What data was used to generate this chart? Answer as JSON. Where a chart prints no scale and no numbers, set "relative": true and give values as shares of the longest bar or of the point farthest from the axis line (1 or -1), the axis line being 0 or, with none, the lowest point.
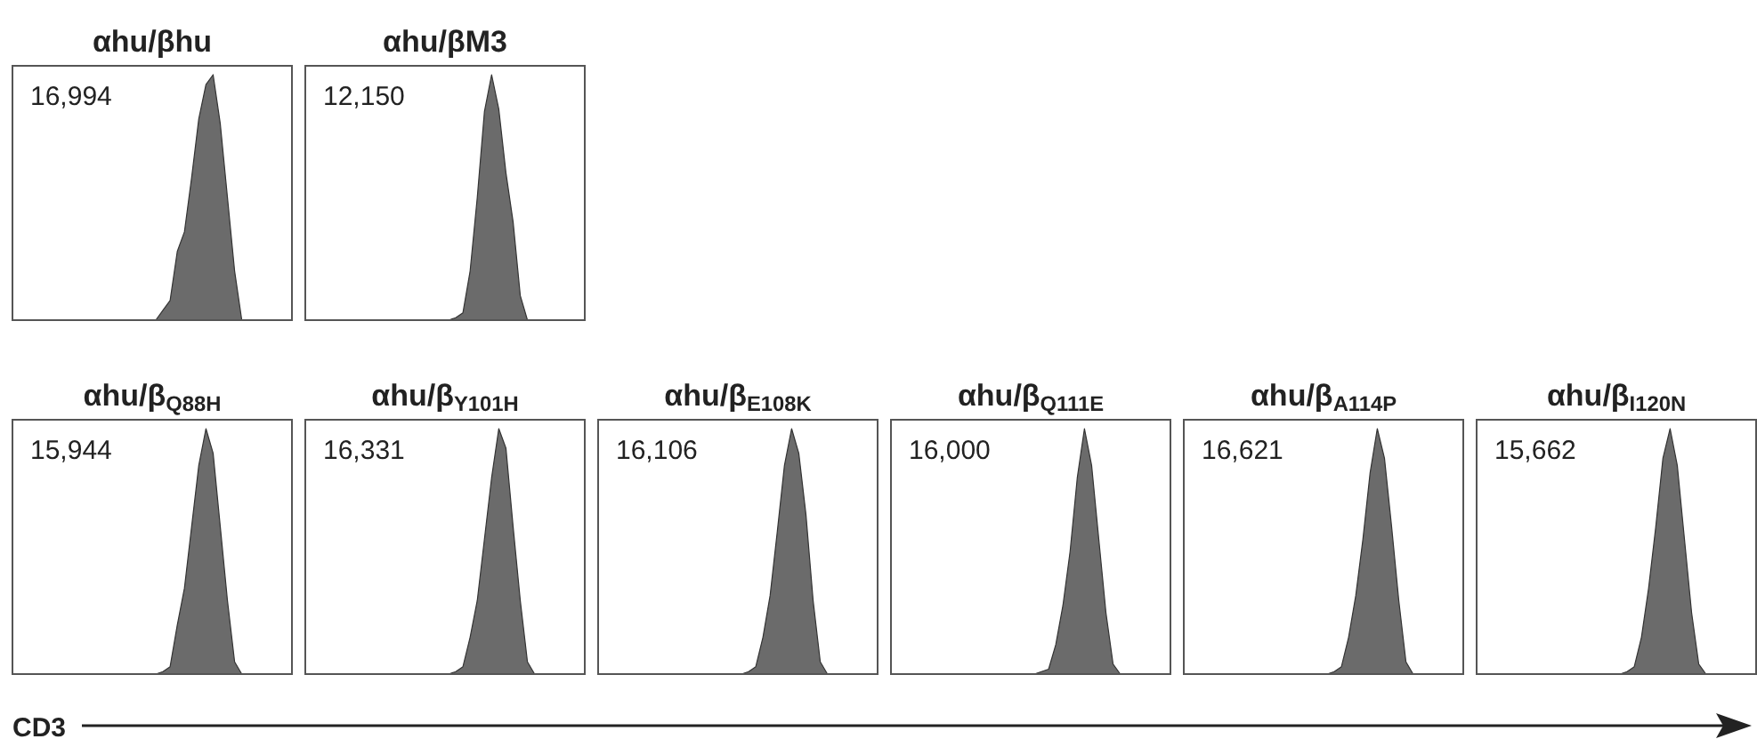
{
  "chart_data": [
    {
      "type": "area",
      "title": "αhu/βhu",
      "relative": true,
      "color": "#6b6b6b",
      "annotations": [
        "16,994"
      ],
      "categories": [
        null,
        null,
        null,
        null,
        null,
        null,
        null,
        null,
        null,
        null,
        null,
        null,
        null,
        null,
        null,
        null,
        null,
        null,
        null,
        null,
        null,
        null,
        null,
        null,
        null,
        null,
        null,
        null,
        null,
        null,
        null,
        null,
        null,
        null,
        null,
        null,
        null,
        null,
        null,
        null
      ],
      "values": [
        0,
        0,
        0,
        0,
        0,
        0,
        0,
        0,
        0,
        0,
        0,
        0,
        0,
        0,
        0,
        0,
        0,
        0,
        0,
        0,
        0,
        0.04,
        0.08,
        0.28,
        0.36,
        0.58,
        0.82,
        0.96,
        1,
        0.8,
        0.5,
        0.2,
        0,
        0,
        0,
        0,
        0,
        0,
        0,
        0
      ]
    },
    {
      "type": "area",
      "title": "αhu/βM3",
      "relative": true,
      "color": "#6b6b6b",
      "annotations": [
        "12,150"
      ],
      "categories": [
        null,
        null,
        null,
        null,
        null,
        null,
        null,
        null,
        null,
        null,
        null,
        null,
        null,
        null,
        null,
        null,
        null,
        null,
        null,
        null,
        null,
        null,
        null,
        null,
        null,
        null,
        null,
        null,
        null,
        null,
        null,
        null,
        null,
        null,
        null,
        null,
        null,
        null,
        null,
        null
      ],
      "values": [
        0,
        0,
        0,
        0,
        0,
        0,
        0,
        0,
        0,
        0,
        0,
        0,
        0,
        0,
        0,
        0,
        0,
        0,
        0,
        0,
        0,
        0.01,
        0.03,
        0.2,
        0.5,
        0.85,
        1,
        0.86,
        0.6,
        0.4,
        0.1,
        0,
        0,
        0,
        0,
        0,
        0,
        0,
        0,
        0
      ]
    },
    {
      "type": "area",
      "title": "αhu/β$_{Q88H}$",
      "relative": true,
      "color": "#6b6b6b",
      "annotations": [
        "15,944"
      ],
      "categories": [
        null,
        null,
        null,
        null,
        null,
        null,
        null,
        null,
        null,
        null,
        null,
        null,
        null,
        null,
        null,
        null,
        null,
        null,
        null,
        null,
        null,
        null,
        null,
        null,
        null,
        null,
        null,
        null,
        null,
        null,
        null,
        null,
        null,
        null,
        null,
        null,
        null,
        null,
        null,
        null
      ],
      "values": [
        0,
        0,
        0,
        0,
        0,
        0,
        0,
        0,
        0,
        0,
        0,
        0,
        0,
        0,
        0,
        0,
        0,
        0,
        0,
        0,
        0,
        0.01,
        0.03,
        0.2,
        0.35,
        0.6,
        0.85,
        1,
        0.9,
        0.6,
        0.3,
        0.05,
        0,
        0,
        0,
        0,
        0,
        0,
        0,
        0
      ],
      "xlabel": "CD3"
    },
    {
      "type": "area",
      "title": "αhu/β$_{Y101H}$",
      "relative": true,
      "color": "#6b6b6b",
      "annotations": [
        "16,331"
      ],
      "categories": [
        null,
        null,
        null,
        null,
        null,
        null,
        null,
        null,
        null,
        null,
        null,
        null,
        null,
        null,
        null,
        null,
        null,
        null,
        null,
        null,
        null,
        null,
        null,
        null,
        null,
        null,
        null,
        null,
        null,
        null,
        null,
        null,
        null,
        null,
        null,
        null,
        null,
        null,
        null,
        null
      ],
      "values": [
        0,
        0,
        0,
        0,
        0,
        0,
        0,
        0,
        0,
        0,
        0,
        0,
        0,
        0,
        0,
        0,
        0,
        0,
        0,
        0,
        0,
        0.01,
        0.03,
        0.15,
        0.3,
        0.55,
        0.8,
        1,
        0.92,
        0.6,
        0.3,
        0.05,
        0,
        0,
        0,
        0,
        0,
        0,
        0,
        0
      ]
    },
    {
      "type": "area",
      "title": "αhu/β$_{E108K}$",
      "relative": true,
      "color": "#6b6b6b",
      "annotations": [
        "16,106"
      ],
      "categories": [
        null,
        null,
        null,
        null,
        null,
        null,
        null,
        null,
        null,
        null,
        null,
        null,
        null,
        null,
        null,
        null,
        null,
        null,
        null,
        null,
        null,
        null,
        null,
        null,
        null,
        null,
        null,
        null,
        null,
        null,
        null,
        null,
        null,
        null,
        null,
        null,
        null,
        null,
        null,
        null
      ],
      "values": [
        0,
        0,
        0,
        0,
        0,
        0,
        0,
        0,
        0,
        0,
        0,
        0,
        0,
        0,
        0,
        0,
        0,
        0,
        0,
        0,
        0,
        0.01,
        0.03,
        0.15,
        0.32,
        0.58,
        0.85,
        1,
        0.9,
        0.65,
        0.3,
        0.05,
        0,
        0,
        0,
        0,
        0,
        0,
        0,
        0
      ]
    },
    {
      "type": "area",
      "title": "αhu/β$_{Q111E}$",
      "relative": true,
      "color": "#6b6b6b",
      "annotations": [
        "16,000"
      ],
      "categories": [
        null,
        null,
        null,
        null,
        null,
        null,
        null,
        null,
        null,
        null,
        null,
        null,
        null,
        null,
        null,
        null,
        null,
        null,
        null,
        null,
        null,
        null,
        null,
        null,
        null,
        null,
        null,
        null,
        null,
        null,
        null,
        null,
        null,
        null,
        null,
        null,
        null,
        null,
        null,
        null
      ],
      "values": [
        0,
        0,
        0,
        0,
        0,
        0,
        0,
        0,
        0,
        0,
        0,
        0,
        0,
        0,
        0,
        0,
        0,
        0,
        0,
        0,
        0,
        0.01,
        0.02,
        0.12,
        0.28,
        0.5,
        0.8,
        1,
        0.85,
        0.55,
        0.25,
        0.04,
        0,
        0,
        0,
        0,
        0,
        0,
        0,
        0
      ]
    },
    {
      "type": "area",
      "title": "αhu/β$_{A114P}$",
      "relative": true,
      "color": "#6b6b6b",
      "annotations": [
        "16,621"
      ],
      "categories": [
        null,
        null,
        null,
        null,
        null,
        null,
        null,
        null,
        null,
        null,
        null,
        null,
        null,
        null,
        null,
        null,
        null,
        null,
        null,
        null,
        null,
        null,
        null,
        null,
        null,
        null,
        null,
        null,
        null,
        null,
        null,
        null,
        null,
        null,
        null,
        null,
        null,
        null,
        null,
        null
      ],
      "values": [
        0,
        0,
        0,
        0,
        0,
        0,
        0,
        0,
        0,
        0,
        0,
        0,
        0,
        0,
        0,
        0,
        0,
        0,
        0,
        0,
        0,
        0.01,
        0.03,
        0.15,
        0.32,
        0.55,
        0.82,
        1,
        0.88,
        0.6,
        0.3,
        0.05,
        0,
        0,
        0,
        0,
        0,
        0,
        0,
        0
      ]
    },
    {
      "type": "area",
      "title": "αhu/β$_{I120N}$",
      "relative": true,
      "color": "#6b6b6b",
      "annotations": [
        "15,662"
      ],
      "categories": [
        null,
        null,
        null,
        null,
        null,
        null,
        null,
        null,
        null,
        null,
        null,
        null,
        null,
        null,
        null,
        null,
        null,
        null,
        null,
        null,
        null,
        null,
        null,
        null,
        null,
        null,
        null,
        null,
        null,
        null,
        null,
        null,
        null,
        null,
        null,
        null,
        null,
        null,
        null,
        null
      ],
      "values": [
        0,
        0,
        0,
        0,
        0,
        0,
        0,
        0,
        0,
        0,
        0,
        0,
        0,
        0,
        0,
        0,
        0,
        0,
        0,
        0,
        0,
        0.01,
        0.03,
        0.15,
        0.35,
        0.6,
        0.88,
        1,
        0.85,
        0.55,
        0.25,
        0.04,
        0,
        0,
        0,
        0,
        0,
        0,
        0,
        0
      ]
    }
  ]
}
